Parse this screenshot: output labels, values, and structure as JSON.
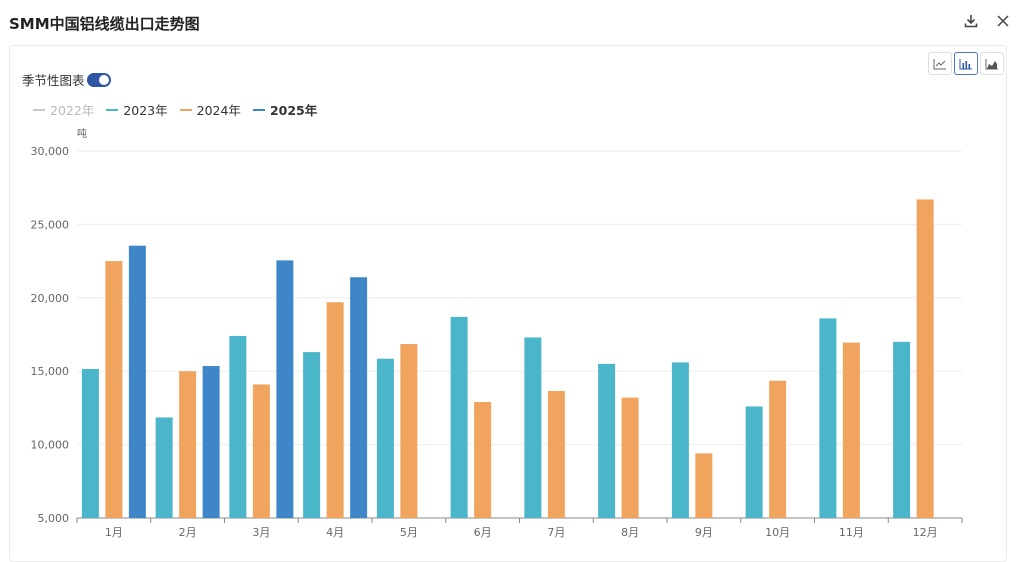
{
  "header": {
    "title": "SMM中国铝线缆出口走势图",
    "download_icon": "download-icon",
    "close_icon": "close-icon"
  },
  "toolbar": {
    "modes": [
      {
        "name": "line-chart-icon",
        "active": false
      },
      {
        "name": "bar-chart-icon",
        "active": true
      },
      {
        "name": "area-chart-icon",
        "active": false
      }
    ],
    "seasonal_label": "季节性图表",
    "seasonal_on": true
  },
  "legend": [
    {
      "label": "2022年",
      "color": "#c8c8c8",
      "disabled": true
    },
    {
      "label": "2023年",
      "color": "#4bb5c9",
      "disabled": false
    },
    {
      "label": "2024年",
      "color": "#f0a45e",
      "disabled": false
    },
    {
      "label": "2025年",
      "color": "#3f86c9",
      "disabled": false,
      "bold": true
    }
  ],
  "chart_data": {
    "type": "bar",
    "title": "SMM中国铝线缆出口走势图",
    "ylabel": "吨",
    "xlabel": "",
    "ylim": [
      5000,
      30000
    ],
    "yticks": [
      5000,
      10000,
      15000,
      20000,
      25000,
      30000
    ],
    "ytick_labels": [
      "5,000",
      "10,000",
      "15,000",
      "20,000",
      "25,000",
      "30,000"
    ],
    "categories": [
      "1月",
      "2月",
      "3月",
      "4月",
      "5月",
      "6月",
      "7月",
      "8月",
      "9月",
      "10月",
      "11月",
      "12月"
    ],
    "series": [
      {
        "name": "2023年",
        "color": "#4bb5c9",
        "values": [
          15150,
          11850,
          17400,
          16300,
          15850,
          18700,
          17300,
          15500,
          15600,
          12600,
          18600,
          17000
        ]
      },
      {
        "name": "2024年",
        "color": "#f0a45e",
        "values": [
          22500,
          15000,
          14100,
          19700,
          16850,
          12900,
          13650,
          13200,
          9400,
          14350,
          16950,
          26700
        ]
      },
      {
        "name": "2025年",
        "color": "#3f86c9",
        "values": [
          23550,
          15350,
          22550,
          21400,
          null,
          null,
          null,
          null,
          null,
          null,
          null,
          null
        ]
      }
    ],
    "grid": true,
    "legend_position": "top-left"
  }
}
